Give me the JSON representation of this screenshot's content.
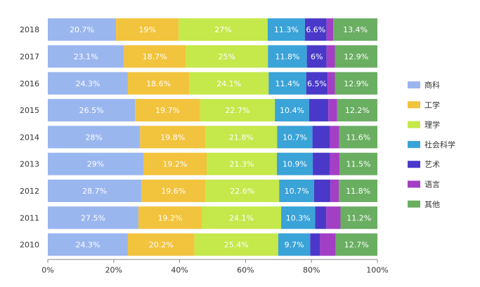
{
  "chart_data": {
    "type": "bar",
    "orientation": "horizontal",
    "stacked": "percent",
    "x_ticks": [
      "0%",
      "20%",
      "40%",
      "60%",
      "80%",
      "100%"
    ],
    "xlim": [
      0,
      100
    ],
    "grid": false,
    "legend_position": "right",
    "categories": [
      "2018",
      "2017",
      "2016",
      "2015",
      "2014",
      "2013",
      "2012",
      "2011",
      "2010"
    ],
    "series": [
      {
        "name": "商科",
        "color": "#9ab6ef",
        "values": [
          20.7,
          23.1,
          24.3,
          26.5,
          28,
          29,
          28.7,
          27.5,
          24.3
        ],
        "labels": [
          "20.7%",
          "23.1%",
          "24.3%",
          "26.5%",
          "28%",
          "29%",
          "28.7%",
          "27.5%",
          "24.3%"
        ]
      },
      {
        "name": "工学",
        "color": "#f2c33c",
        "values": [
          19,
          18.7,
          18.6,
          19.7,
          19.8,
          19.2,
          19.6,
          19.2,
          20.2
        ],
        "labels": [
          "19%",
          "18.7%",
          "18.6%",
          "19.7%",
          "19.8%",
          "19.2%",
          "19.6%",
          "19.2%",
          "20.2%"
        ]
      },
      {
        "name": "理学",
        "color": "#c5e84b",
        "values": [
          27,
          25,
          24.1,
          22.7,
          21.8,
          21.3,
          22.6,
          24.1,
          25.4
        ],
        "labels": [
          "27%",
          "25%",
          "24.1%",
          "22.7%",
          "21.8%",
          "21.3%",
          "22.6%",
          "24.1%",
          "25.4%"
        ]
      },
      {
        "name": "社会科学",
        "color": "#3aa3d8",
        "values": [
          11.3,
          11.8,
          11.4,
          10.4,
          10.7,
          10.9,
          10.7,
          10.3,
          9.7
        ],
        "labels": [
          "11.3%",
          "11.8%",
          "11.4%",
          "10.4%",
          "10.7%",
          "10.9%",
          "10.7%",
          "10.3%",
          "9.7%"
        ]
      },
      {
        "name": "艺术",
        "color": "#4a39c9",
        "values": [
          6.6,
          6,
          6.5,
          5.8,
          5.2,
          5.1,
          5.0,
          3.4,
          3.0
        ],
        "labels": [
          "6.6%",
          "6%",
          "6.5%",
          "",
          "",
          "",
          "",
          "",
          ""
        ]
      },
      {
        "name": "语言",
        "color": "#a33fc4",
        "values": [
          2.0,
          2.5,
          2.2,
          2.7,
          2.9,
          3.0,
          2.6,
          4.3,
          4.7
        ],
        "labels": [
          "",
          "",
          "",
          "",
          "",
          "",
          "",
          "",
          ""
        ]
      },
      {
        "name": "其他",
        "color": "#6aae62",
        "values": [
          13.4,
          12.9,
          12.9,
          12.2,
          11.6,
          11.5,
          11.8,
          11.2,
          12.7
        ],
        "labels": [
          "13.4%",
          "12.9%",
          "12.9%",
          "12.2%",
          "11.6%",
          "11.5%",
          "11.8%",
          "11.2%",
          "12.7%"
        ]
      }
    ]
  }
}
